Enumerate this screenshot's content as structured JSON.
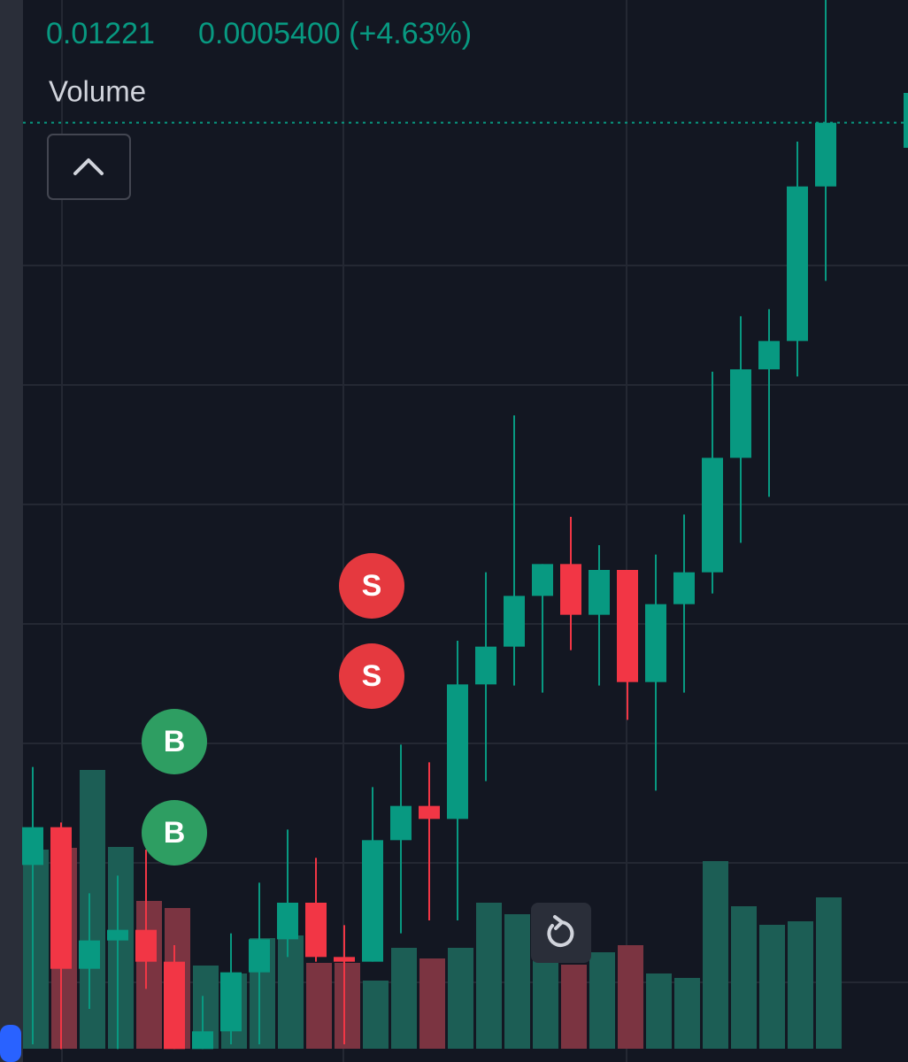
{
  "chart_data": {
    "type": "candlestick",
    "price": "0.01221",
    "change": "0.0005400 (+4.63%)",
    "indicator": "Volume",
    "up_color": "#089981",
    "down_color": "#f23645",
    "volume_up_color": "#1c5e55",
    "volume_down_color": "#7b3441",
    "ylim": [
      0.00425,
      0.01325
    ],
    "candles": [
      {
        "open": 0.00592,
        "high": 0.00675,
        "low": 0.0044,
        "close": 0.00624,
        "volume": 225
      },
      {
        "open": 0.00624,
        "high": 0.00628,
        "low": 0.00436,
        "close": 0.00504,
        "volume": 227
      },
      {
        "open": 0.00504,
        "high": 0.00568,
        "low": 0.0047,
        "close": 0.00528,
        "volume": 315
      },
      {
        "open": 0.00528,
        "high": 0.00583,
        "low": 0.00436,
        "close": 0.00537,
        "volume": 228
      },
      {
        "open": 0.00537,
        "high": 0.00605,
        "low": 0.00487,
        "close": 0.0051,
        "volume": 167
      },
      {
        "open": 0.0051,
        "high": 0.00524,
        "low": 0.00436,
        "close": 0.00436,
        "volume": 159
      },
      {
        "open": 0.00436,
        "high": 0.00481,
        "low": 0.00436,
        "close": 0.00451,
        "volume": 94
      },
      {
        "open": 0.00451,
        "high": 0.00534,
        "low": 0.0044,
        "close": 0.00501,
        "volume": 85
      },
      {
        "open": 0.00501,
        "high": 0.00577,
        "low": 0.0044,
        "close": 0.00529,
        "volume": 125
      },
      {
        "open": 0.00529,
        "high": 0.00622,
        "low": 0.00514,
        "close": 0.0056,
        "volume": 128
      },
      {
        "open": 0.0056,
        "high": 0.00598,
        "low": 0.0051,
        "close": 0.00514,
        "volume": 97
      },
      {
        "open": 0.00514,
        "high": 0.00541,
        "low": 0.0044,
        "close": 0.0051,
        "volume": 97
      },
      {
        "open": 0.0051,
        "high": 0.00658,
        "low": 0.0051,
        "close": 0.00613,
        "volume": 77
      },
      {
        "open": 0.00613,
        "high": 0.00694,
        "low": 0.00534,
        "close": 0.00642,
        "volume": 114
      },
      {
        "open": 0.00642,
        "high": 0.00679,
        "low": 0.00545,
        "close": 0.00631,
        "volume": 102
      },
      {
        "open": 0.00631,
        "high": 0.00782,
        "low": 0.00545,
        "close": 0.00745,
        "volume": 114
      },
      {
        "open": 0.00745,
        "high": 0.0084,
        "low": 0.00663,
        "close": 0.00777,
        "volume": 165
      },
      {
        "open": 0.00777,
        "high": 0.00973,
        "low": 0.00744,
        "close": 0.0082,
        "volume": 152
      },
      {
        "open": 0.0082,
        "high": 0.00847,
        "low": 0.00738,
        "close": 0.00847,
        "volume": 125
      },
      {
        "open": 0.00847,
        "high": 0.00887,
        "low": 0.00774,
        "close": 0.00804,
        "volume": 95
      },
      {
        "open": 0.00804,
        "high": 0.00863,
        "low": 0.00744,
        "close": 0.00842,
        "volume": 109
      },
      {
        "open": 0.00842,
        "high": 0.00842,
        "low": 0.00715,
        "close": 0.00747,
        "volume": 117
      },
      {
        "open": 0.00747,
        "high": 0.00855,
        "low": 0.00655,
        "close": 0.00813,
        "volume": 85
      },
      {
        "open": 0.00813,
        "high": 0.00889,
        "low": 0.00738,
        "close": 0.0084,
        "volume": 80
      },
      {
        "open": 0.0084,
        "high": 0.0101,
        "low": 0.00822,
        "close": 0.00937,
        "volume": 212
      },
      {
        "open": 0.00937,
        "high": 0.01057,
        "low": 0.00865,
        "close": 0.01012,
        "volume": 161
      },
      {
        "open": 0.01012,
        "high": 0.01063,
        "low": 0.00904,
        "close": 0.01036,
        "volume": 140
      },
      {
        "open": 0.01036,
        "high": 0.01205,
        "low": 0.01006,
        "close": 0.01167,
        "volume": 144
      },
      {
        "open": 0.01167,
        "high": 0.0133,
        "low": 0.01087,
        "close": 0.01221,
        "volume": 171
      }
    ],
    "signals": [
      "B",
      "B",
      "S",
      "S"
    ]
  }
}
